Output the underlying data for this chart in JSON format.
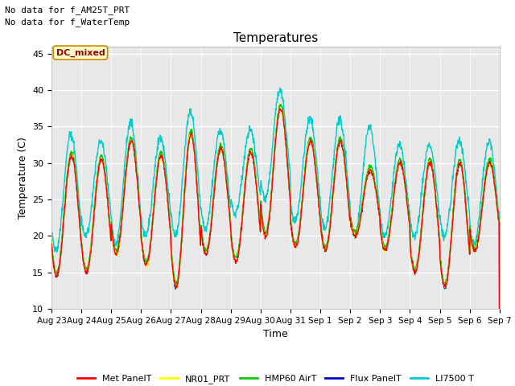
{
  "title": "Temperatures",
  "xlabel": "Time",
  "ylabel": "Temperature (C)",
  "ylim": [
    10,
    46
  ],
  "yticks": [
    10,
    15,
    20,
    25,
    30,
    35,
    40,
    45
  ],
  "background_color": "#e8e8e8",
  "text_annotations": [
    "No data for f_AM25T_PRT",
    "No data for f_WaterTemp"
  ],
  "dc_mixed_label": "DC_mixed",
  "legend_entries": [
    {
      "label": "Met PanelT",
      "color": "#ff0000"
    },
    {
      "label": "NR01_PRT",
      "color": "#ffff00"
    },
    {
      "label": "HMP60 AirT",
      "color": "#00cc00"
    },
    {
      "label": "Flux PanelT",
      "color": "#0000cc"
    },
    {
      "label": "LI7500 T",
      "color": "#00cccc"
    }
  ],
  "xtick_labels": [
    "Aug 23",
    "Aug 24",
    "Aug 25",
    "Aug 26",
    "Aug 27",
    "Aug 28",
    "Aug 29",
    "Aug 30",
    "Aug 31",
    "Sep 1",
    "Sep 2",
    "Sep 3",
    "Sep 4",
    "Sep 5",
    "Sep 6",
    "Sep 7"
  ],
  "num_days": 15,
  "line_colors": {
    "met": "#ff0000",
    "nr01": "#ffff00",
    "hmp60": "#00cc00",
    "flux": "#0000cc",
    "li7500": "#00cccc"
  },
  "day_peaks": [
    31.0,
    30.5,
    33.0,
    31.0,
    34.0,
    32.0,
    31.5,
    37.5,
    33.0,
    33.0,
    29.0,
    30.0,
    30.0,
    30.0,
    30.0
  ],
  "day_mins": [
    14.5,
    15.0,
    17.5,
    16.0,
    13.0,
    17.5,
    16.5,
    20.0,
    18.5,
    18.0,
    20.0,
    18.0,
    15.0,
    13.0,
    18.0
  ],
  "li_peaks": [
    34.0,
    33.0,
    35.5,
    33.5,
    37.0,
    34.5,
    34.5,
    40.0,
    36.0,
    36.0,
    35.0,
    32.5,
    32.5,
    33.0,
    33.0
  ],
  "li_mins": [
    18.0,
    20.0,
    19.0,
    20.0,
    20.0,
    21.0,
    23.0,
    25.0,
    22.0,
    21.0,
    20.0,
    20.0,
    20.0,
    20.0,
    19.0
  ]
}
